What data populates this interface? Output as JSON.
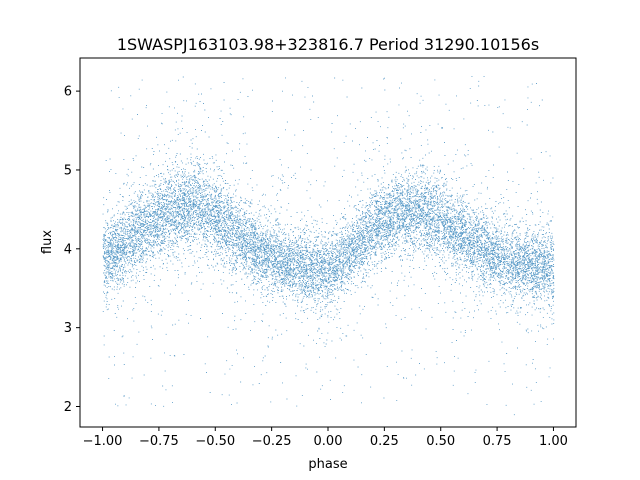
{
  "chart_data": {
    "type": "scatter",
    "title": "1SWASPJ163103.98+323816.7 Period 31290.10156s",
    "xlabel": "phase",
    "ylabel": "flux",
    "xlim": [
      -1.1,
      1.1
    ],
    "ylim": [
      1.74,
      6.42
    ],
    "x_ticks": [
      -1.0,
      -0.75,
      -0.5,
      -0.25,
      0.0,
      0.25,
      0.5,
      0.75,
      1.0
    ],
    "x_tick_labels": [
      "−1.00",
      "−0.75",
      "−0.50",
      "−0.25",
      "0.00",
      "0.25",
      "0.50",
      "0.75",
      "1.00"
    ],
    "y_ticks": [
      2,
      3,
      4,
      5,
      6
    ],
    "y_tick_labels": [
      "2",
      "3",
      "4",
      "5",
      "6"
    ],
    "grid": false,
    "point_color": "#1f77b4",
    "series": [
      {
        "x": [
          -1.0,
          -0.9,
          -0.8,
          -0.7,
          -0.6,
          -0.5,
          -0.4,
          -0.3,
          -0.2,
          -0.1,
          0.0,
          0.1,
          0.2,
          0.3,
          0.4,
          0.5,
          0.6,
          0.7,
          0.8,
          0.9,
          1.0
        ],
        "y": [
          3.85,
          4.05,
          4.3,
          4.5,
          4.55,
          4.4,
          4.15,
          3.95,
          3.82,
          3.75,
          3.72,
          3.95,
          4.25,
          4.45,
          4.5,
          4.35,
          4.15,
          3.98,
          3.85,
          3.78,
          3.75
        ],
        "spread": [
          0.32,
          0.32,
          0.34,
          0.36,
          0.36,
          0.34,
          0.32,
          0.3,
          0.28,
          0.3,
          0.32,
          0.3,
          0.32,
          0.34,
          0.35,
          0.34,
          0.32,
          0.3,
          0.3,
          0.3,
          0.32
        ]
      }
    ]
  }
}
